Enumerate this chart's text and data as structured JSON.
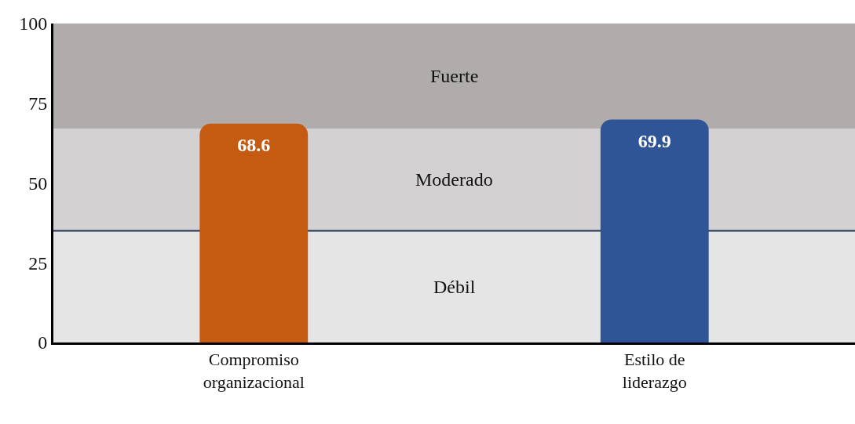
{
  "chart_data": {
    "type": "bar",
    "categories": [
      "Compromiso organizacional",
      "Estilo de liderazgo"
    ],
    "values": [
      68.6,
      69.9
    ],
    "colors": [
      "#c55a11",
      "#2f5597"
    ],
    "ylim": [
      0,
      100
    ],
    "yticks": [
      0,
      25,
      50,
      75,
      100
    ],
    "grid": false,
    "data_labels": true,
    "bands": [
      {
        "axis": "y",
        "from": 0,
        "to": 35,
        "label": "Débil",
        "color": "#e6e5e6"
      },
      {
        "axis": "y",
        "from": 35,
        "to": 67,
        "label": "Moderado",
        "color": "#d3d1d2"
      },
      {
        "axis": "y",
        "from": 67,
        "to": 100,
        "label": "Fuerte",
        "color": "#b0acab"
      }
    ],
    "ref_lines": [
      {
        "axis": "y",
        "value": 35,
        "color": "#1f3050"
      }
    ]
  }
}
